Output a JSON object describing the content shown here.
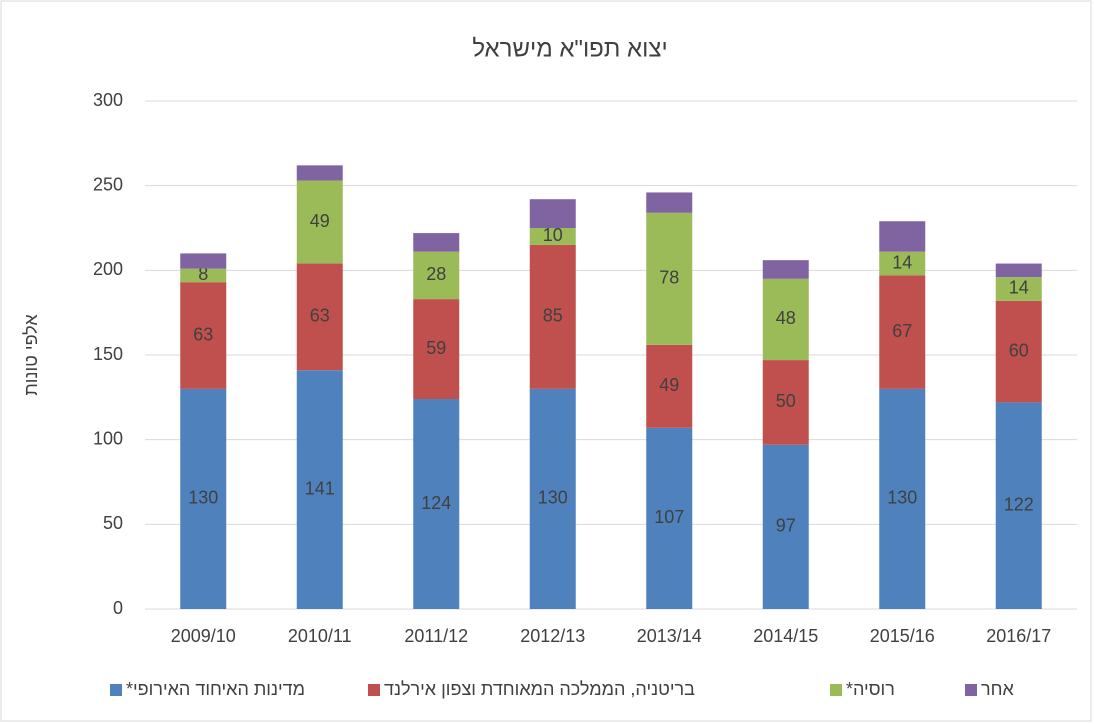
{
  "chart_data": {
    "type": "stacked_bar",
    "title": "יצוא תפו\"א מישראל",
    "y_label": "אלפי טונות",
    "categories": [
      "2009/10",
      "2010/11",
      "2011/12",
      "2012/13",
      "2013/14",
      "2014/15",
      "2015/16",
      "2016/17"
    ],
    "series": [
      {
        "name": "מדינות האיחוד האירופי*",
        "color": "#4f81bd",
        "show_labels": true,
        "values": [
          130,
          141,
          124,
          130,
          107,
          97,
          130,
          122
        ]
      },
      {
        "name": "בריטניה, הממלכה המאוחדת וצפון אירלנד",
        "color": "#c0504d",
        "show_labels": true,
        "values": [
          63,
          63,
          59,
          85,
          49,
          50,
          67,
          60
        ]
      },
      {
        "name": "רוסיה*",
        "color": "#9bbb59",
        "show_labels": true,
        "values": [
          8,
          49,
          28,
          10,
          78,
          48,
          14,
          14
        ]
      },
      {
        "name": "אחר",
        "color": "#8064a2",
        "show_labels": false,
        "values": [
          9,
          9,
          11,
          17,
          12,
          11,
          18,
          8
        ]
      }
    ],
    "ylim": [
      0,
      300
    ],
    "yticks": [
      0,
      50,
      100,
      150,
      200,
      250,
      300
    ],
    "grid": true,
    "legend": "bottom"
  }
}
